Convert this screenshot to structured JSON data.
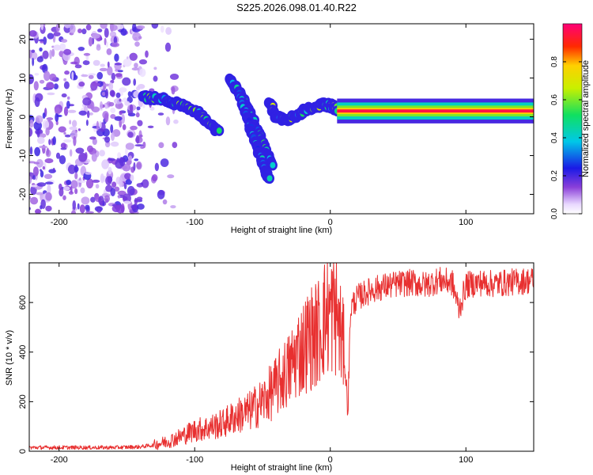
{
  "title": "S225.2026.098.01.40.R22",
  "chart_data": [
    {
      "type": "heatmap",
      "xlabel": "Height of straight line (km)",
      "ylabel": "Frequency (Hz)",
      "xlim": [
        -222,
        150
      ],
      "ylim": [
        -25,
        24
      ],
      "xticks": [
        -200,
        -100,
        0,
        100
      ],
      "yticks": [
        -20,
        -10,
        0,
        10,
        20
      ],
      "colorbar": {
        "label": "Normalized spectral amplitude",
        "range": [
          0,
          1
        ],
        "ticks": [
          0.0,
          0.2,
          0.4,
          0.6,
          0.8
        ],
        "tick_labels": [
          "0.0",
          "0.2",
          "0.4",
          "0.6",
          "0.8"
        ]
      },
      "features": [
        {
          "name": "noise-cloud",
          "x_range": [
            -222,
            -110
          ],
          "freq_range": [
            -25,
            24
          ],
          "amplitude": 0.12
        },
        {
          "name": "ridge-1",
          "points": [
            [
              -138,
              5
            ],
            [
              -122,
              4.5
            ],
            [
              -110,
              3
            ],
            [
              -98,
              1
            ],
            [
              -88,
              -2
            ],
            [
              -82,
              -4
            ]
          ],
          "amplitude": 0.5
        },
        {
          "name": "ridge-2",
          "points": [
            [
              -75,
              10
            ],
            [
              -66,
              6
            ],
            [
              -58,
              0
            ],
            [
              -52,
              -5
            ],
            [
              -47,
              -9
            ],
            [
              -42,
              -13
            ]
          ],
          "amplitude": 0.45
        },
        {
          "name": "ridge-3",
          "points": [
            [
              -68,
              7
            ],
            [
              -60,
              -2
            ],
            [
              -54,
              -8
            ],
            [
              -50,
              -12
            ],
            [
              -45,
              -16
            ]
          ],
          "amplitude": 0.35
        },
        {
          "name": "ridge-4",
          "points": [
            [
              -45,
              4
            ],
            [
              -40,
              0
            ],
            [
              -32,
              -1
            ],
            [
              -22,
              1
            ],
            [
              -10,
              3
            ],
            [
              0,
              3
            ],
            [
              5,
              2
            ]
          ],
          "amplitude": 0.55
        },
        {
          "name": "carrier",
          "points": [
            [
              5,
              1.5
            ],
            [
              150,
              1.5
            ]
          ],
          "amplitude": 0.95
        }
      ]
    },
    {
      "type": "line",
      "xlabel": "Height of straight line (km)",
      "ylabel": "SNR (10 * v/v)",
      "xlim": [
        -222,
        150
      ],
      "ylim": [
        0,
        760
      ],
      "xticks": [
        -200,
        -100,
        0,
        100
      ],
      "yticks": [
        0,
        200,
        400,
        600
      ],
      "color": "#e83030",
      "series": [
        {
          "name": "SNR",
          "x": [
            -222,
            -200,
            -180,
            -160,
            -140,
            -130,
            -120,
            -110,
            -100,
            -90,
            -80,
            -70,
            -60,
            -50,
            -40,
            -35,
            -30,
            -25,
            -20,
            -15,
            -10,
            -5,
            0,
            5,
            10,
            13,
            15,
            20,
            30,
            40,
            50,
            60,
            70,
            80,
            90,
            95,
            100,
            110,
            120,
            130,
            140,
            150
          ],
          "y": [
            15,
            15,
            15,
            15,
            18,
            25,
            40,
            60,
            85,
            95,
            110,
            140,
            160,
            200,
            260,
            300,
            330,
            390,
            420,
            460,
            470,
            530,
            560,
            550,
            400,
            170,
            580,
            620,
            650,
            665,
            675,
            680,
            670,
            690,
            680,
            570,
            670,
            680,
            675,
            680,
            685,
            690
          ]
        }
      ]
    }
  ]
}
